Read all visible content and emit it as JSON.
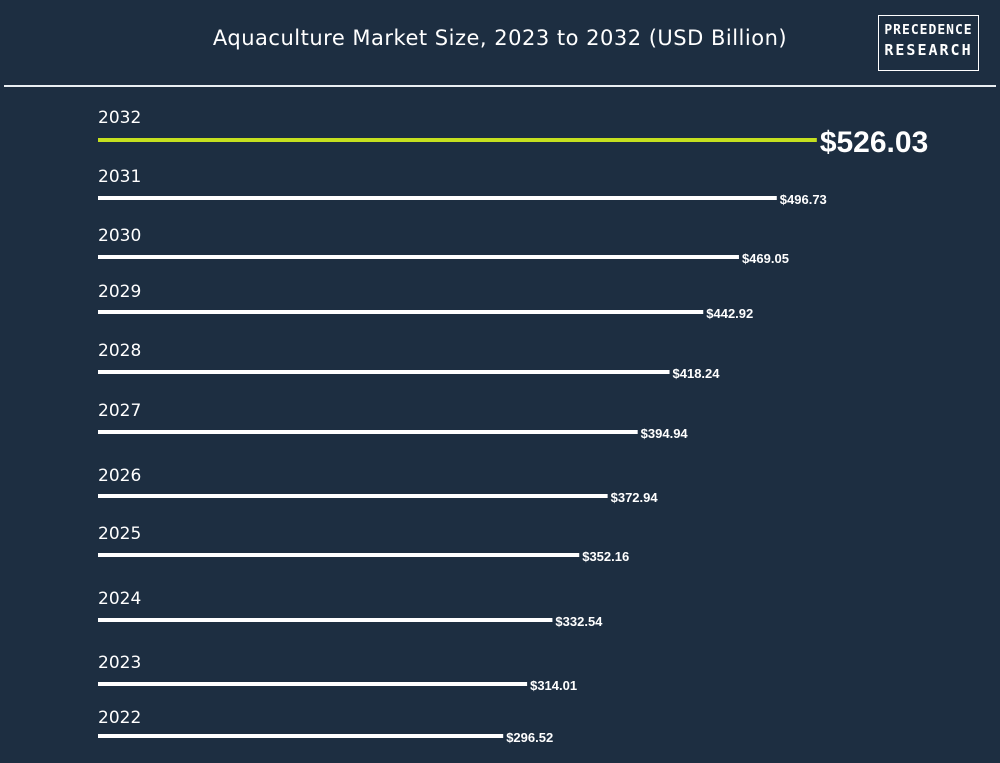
{
  "header": {
    "title": "Aquaculture Market Size, 2023 to 2032 (USD Billion)",
    "logo_line1": "PRECEDENCE",
    "logo_line2": "RESEARCH"
  },
  "colors": {
    "background": "#1d2e41",
    "bar": "#ffffff",
    "highlight_bar": "#c5e01f",
    "text": "#ffffff"
  },
  "chart_data": {
    "type": "bar",
    "orientation": "horizontal",
    "title": "Aquaculture Market Size, 2023 to 2032 (USD Billion)",
    "categories": [
      "2032",
      "2031",
      "2030",
      "2029",
      "2028",
      "2027",
      "2026",
      "2025",
      "2024",
      "2023",
      "2022"
    ],
    "values": [
      526.03,
      496.73,
      469.05,
      442.92,
      418.24,
      394.94,
      372.94,
      352.16,
      332.54,
      314.01,
      296.52
    ],
    "value_labels": [
      "$526.03",
      "$496.73",
      "$469.05",
      "$442.92",
      "$418.24",
      "$394.94",
      "$372.94",
      "$352.16",
      "$332.54",
      "$314.01",
      "$296.52"
    ],
    "highlight_category": "2032",
    "grid": false,
    "legend": "none"
  }
}
